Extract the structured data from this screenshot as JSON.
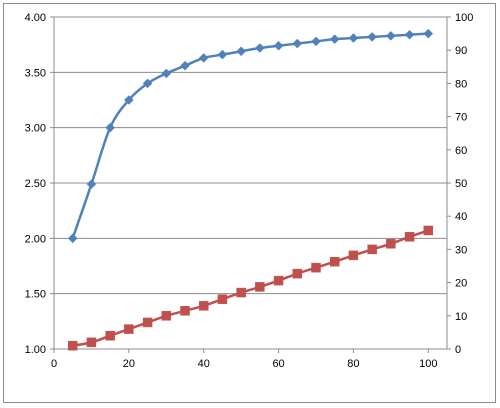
{
  "chart_data": {
    "type": "line",
    "title": "",
    "xlabel": "",
    "ylabel": "",
    "y2label": "",
    "xlim": [
      0,
      105
    ],
    "ylim": [
      1.0,
      4.0
    ],
    "y2lim": [
      0,
      100
    ],
    "x_ticks": [
      0,
      20,
      40,
      60,
      80,
      100
    ],
    "y_ticks": [
      "1.00",
      "1.50",
      "2.00",
      "2.50",
      "3.00",
      "3.50",
      "4.00"
    ],
    "y2_ticks": [
      0,
      10,
      20,
      30,
      40,
      50,
      60,
      70,
      80,
      90,
      100
    ],
    "grid": true,
    "legend": "none",
    "x": [
      5,
      10,
      15,
      20,
      25,
      30,
      35,
      40,
      45,
      50,
      55,
      60,
      65,
      70,
      75,
      80,
      85,
      90,
      95,
      100
    ],
    "series": [
      {
        "axis": "left",
        "color": "#4f81bd",
        "marker": "diamond",
        "values": [
          2.0,
          2.49,
          3.0,
          3.25,
          3.4,
          3.49,
          3.56,
          3.63,
          3.66,
          3.69,
          3.72,
          3.74,
          3.76,
          3.78,
          3.8,
          3.81,
          3.82,
          3.83,
          3.84,
          3.85
        ]
      },
      {
        "axis": "right",
        "color": "#c0504d",
        "marker": "square",
        "values": [
          1.0,
          2.0,
          4.0,
          6.0,
          8.0,
          10.0,
          11.5,
          13.0,
          15.0,
          17.0,
          18.7,
          20.6,
          22.7,
          24.5,
          26.3,
          28.2,
          30.0,
          31.7,
          33.8,
          35.7
        ]
      }
    ]
  }
}
